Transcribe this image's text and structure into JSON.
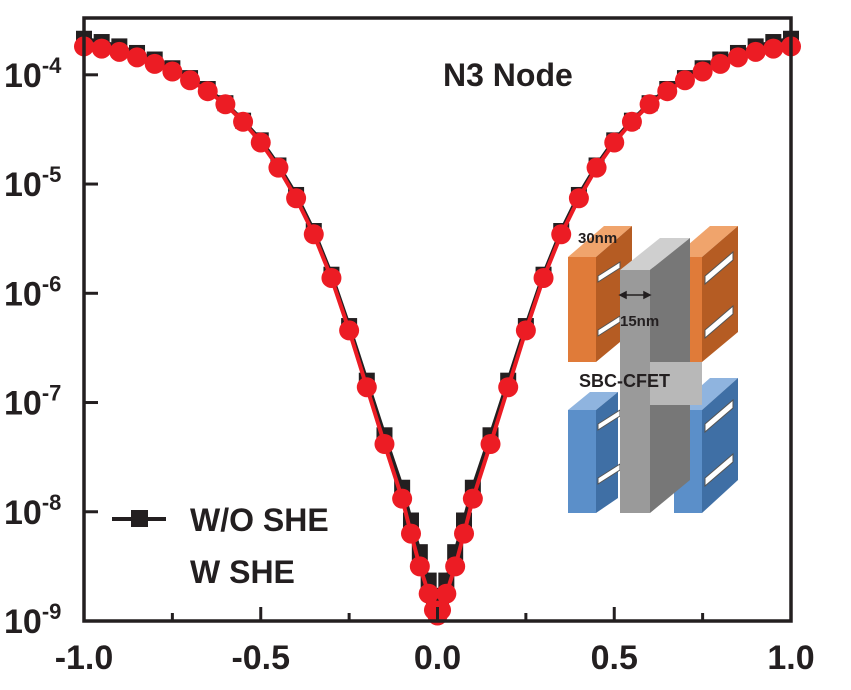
{
  "chart_data": {
    "type": "line",
    "title": "N3 Node",
    "xlabel": "",
    "ylabel": "",
    "xlim": [
      -1.0,
      1.0
    ],
    "ylim_exp": [
      -9,
      -3.48
    ],
    "yscale": "log",
    "x_ticks": [
      "-1.0",
      "-0.5",
      "0.0",
      "0.5",
      "1.0"
    ],
    "y_ticks": [
      {
        "base": "10",
        "exp": "-9"
      },
      {
        "base": "10",
        "exp": "-8"
      },
      {
        "base": "10",
        "exp": "-7"
      },
      {
        "base": "10",
        "exp": "-6"
      },
      {
        "base": "10",
        "exp": "-5"
      },
      {
        "base": "10",
        "exp": "-4"
      }
    ],
    "series": [
      {
        "name": "W/O SHE",
        "color": "#231f20",
        "marker": "square",
        "x": [
          -1.0,
          -0.95,
          -0.9,
          -0.85,
          -0.8,
          -0.75,
          -0.7,
          -0.65,
          -0.6,
          -0.55,
          -0.5,
          -0.45,
          -0.4,
          -0.35,
          -0.3,
          -0.25,
          -0.2,
          -0.15,
          -0.1,
          -0.075,
          -0.05,
          -0.025,
          -0.01,
          0.0,
          0.01,
          0.025,
          0.05,
          0.075,
          0.1,
          0.15,
          0.2,
          0.25,
          0.3,
          0.35,
          0.4,
          0.45,
          0.5,
          0.55,
          0.6,
          0.65,
          0.7,
          0.75,
          0.8,
          0.85,
          0.9,
          0.95,
          1.0
        ],
        "log10_y": [
          -3.67,
          -3.7,
          -3.74,
          -3.8,
          -3.86,
          -3.94,
          -4.03,
          -4.13,
          -4.26,
          -4.42,
          -4.6,
          -4.83,
          -5.1,
          -5.43,
          -5.83,
          -6.3,
          -6.8,
          -7.3,
          -7.78,
          -8.08,
          -8.37,
          -8.63,
          -8.77,
          -8.83,
          -8.77,
          -8.63,
          -8.37,
          -8.08,
          -7.78,
          -7.3,
          -6.8,
          -6.3,
          -5.83,
          -5.43,
          -5.1,
          -4.83,
          -4.6,
          -4.42,
          -4.26,
          -4.13,
          -4.03,
          -3.94,
          -3.86,
          -3.8,
          -3.74,
          -3.7,
          -3.67
        ]
      },
      {
        "name": "W SHE",
        "color": "#ec1c24",
        "marker": "circle",
        "x": [
          -1.0,
          -0.95,
          -0.9,
          -0.85,
          -0.8,
          -0.75,
          -0.7,
          -0.65,
          -0.6,
          -0.55,
          -0.5,
          -0.45,
          -0.4,
          -0.35,
          -0.3,
          -0.25,
          -0.2,
          -0.15,
          -0.1,
          -0.075,
          -0.05,
          -0.025,
          -0.01,
          0.0,
          0.01,
          0.025,
          0.05,
          0.075,
          0.1,
          0.15,
          0.2,
          0.25,
          0.3,
          0.35,
          0.4,
          0.45,
          0.5,
          0.55,
          0.6,
          0.65,
          0.7,
          0.75,
          0.8,
          0.85,
          0.9,
          0.95,
          1.0
        ],
        "log10_y": [
          -3.74,
          -3.76,
          -3.79,
          -3.84,
          -3.9,
          -3.97,
          -4.05,
          -4.15,
          -4.27,
          -4.43,
          -4.62,
          -4.85,
          -5.13,
          -5.46,
          -5.86,
          -6.34,
          -6.86,
          -7.38,
          -7.88,
          -8.2,
          -8.5,
          -8.75,
          -8.9,
          -8.95,
          -8.9,
          -8.75,
          -8.5,
          -8.2,
          -7.88,
          -7.38,
          -6.86,
          -6.34,
          -5.86,
          -5.46,
          -5.13,
          -4.85,
          -4.62,
          -4.43,
          -4.27,
          -4.15,
          -4.05,
          -3.97,
          -3.9,
          -3.84,
          -3.79,
          -3.76,
          -3.74
        ]
      }
    ],
    "inset": {
      "label": "SBC-CFET",
      "dim_width": "30nm",
      "dim_gap": "15nm",
      "colors": {
        "pfet": "#e07b39",
        "nfet": "#5b8fc9",
        "gate": "#9a9a9a"
      }
    }
  }
}
